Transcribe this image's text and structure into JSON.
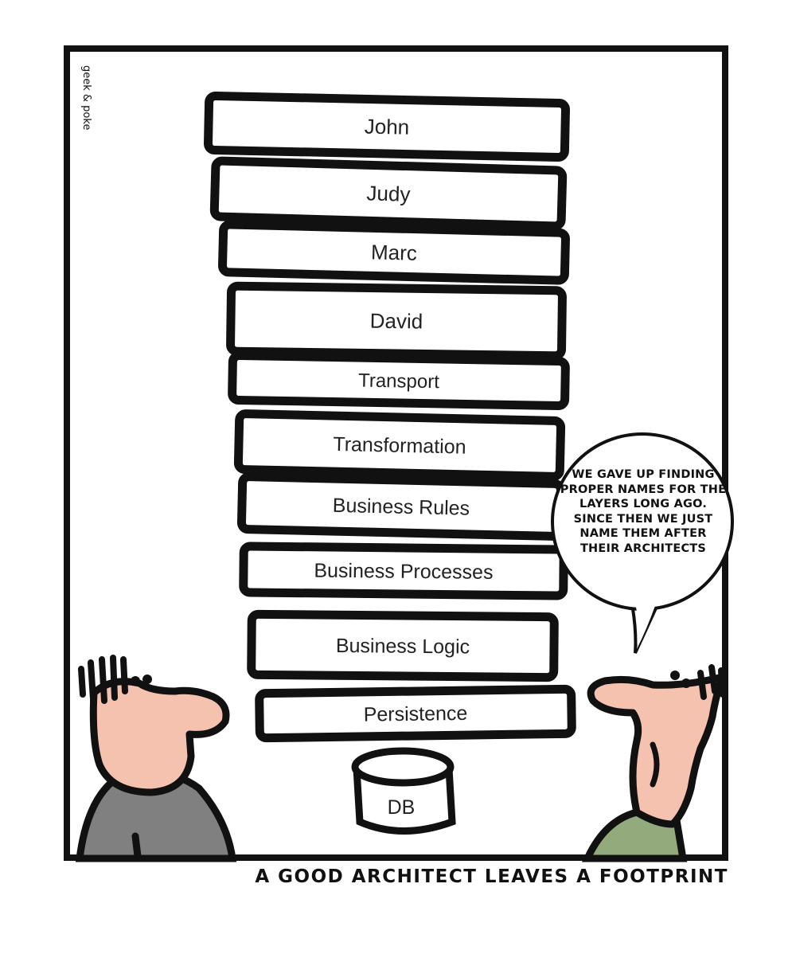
{
  "comic": {
    "signature": "geek & poke",
    "layers": [
      "John",
      "Judy",
      "Marc",
      "David",
      "Transport",
      "Transformation",
      "Business Rules",
      "Business Processes",
      "Business Logic",
      "Persistence"
    ],
    "database_label": "DB",
    "speech": "We gave up finding proper names for the layers long ago. Since then we just name them after their architects",
    "caption": "A GOOD ARCHITECT LEAVES A FOOTPRINT"
  },
  "colors": {
    "outline": "#111111",
    "skin": "#f4c2ae",
    "left_shirt": "#808080",
    "right_shirt": "#93ab7c"
  },
  "icons": [
    "layer-stack",
    "database-cylinder",
    "speech-bubble",
    "person-left",
    "person-right"
  ]
}
